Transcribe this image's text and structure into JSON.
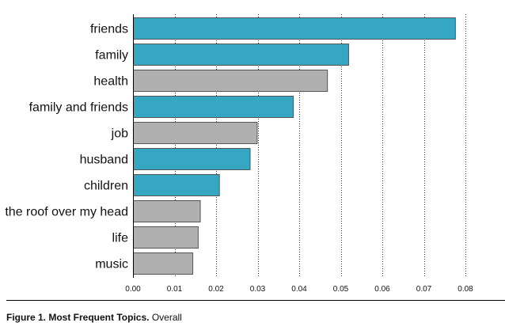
{
  "chart_data": {
    "type": "bar",
    "orientation": "horizontal",
    "categories": [
      "friends",
      "family",
      "health",
      "family and friends",
      "job",
      "husband",
      "children",
      "the roof over my head",
      "life",
      "music"
    ],
    "values": [
      0.0775,
      0.0518,
      0.0467,
      0.0385,
      0.0298,
      0.0281,
      0.0207,
      0.0161,
      0.0156,
      0.0143
    ],
    "highlighted": [
      true,
      true,
      false,
      true,
      false,
      true,
      true,
      false,
      false,
      false
    ],
    "colors": {
      "highlight": "#35a7c2",
      "default": "#b0b0b0",
      "bar_stroke": "#555555"
    },
    "xlim": [
      0,
      0.08
    ],
    "xticks": [
      "0.00",
      "0.01",
      "0.02",
      "0.03",
      "0.04",
      "0.05",
      "0.06",
      "0.07",
      "0.08"
    ],
    "grid": "vertical-dotted"
  },
  "caption": {
    "label": "Figure 1. Most Frequent Topics.",
    "text": "Overall"
  }
}
